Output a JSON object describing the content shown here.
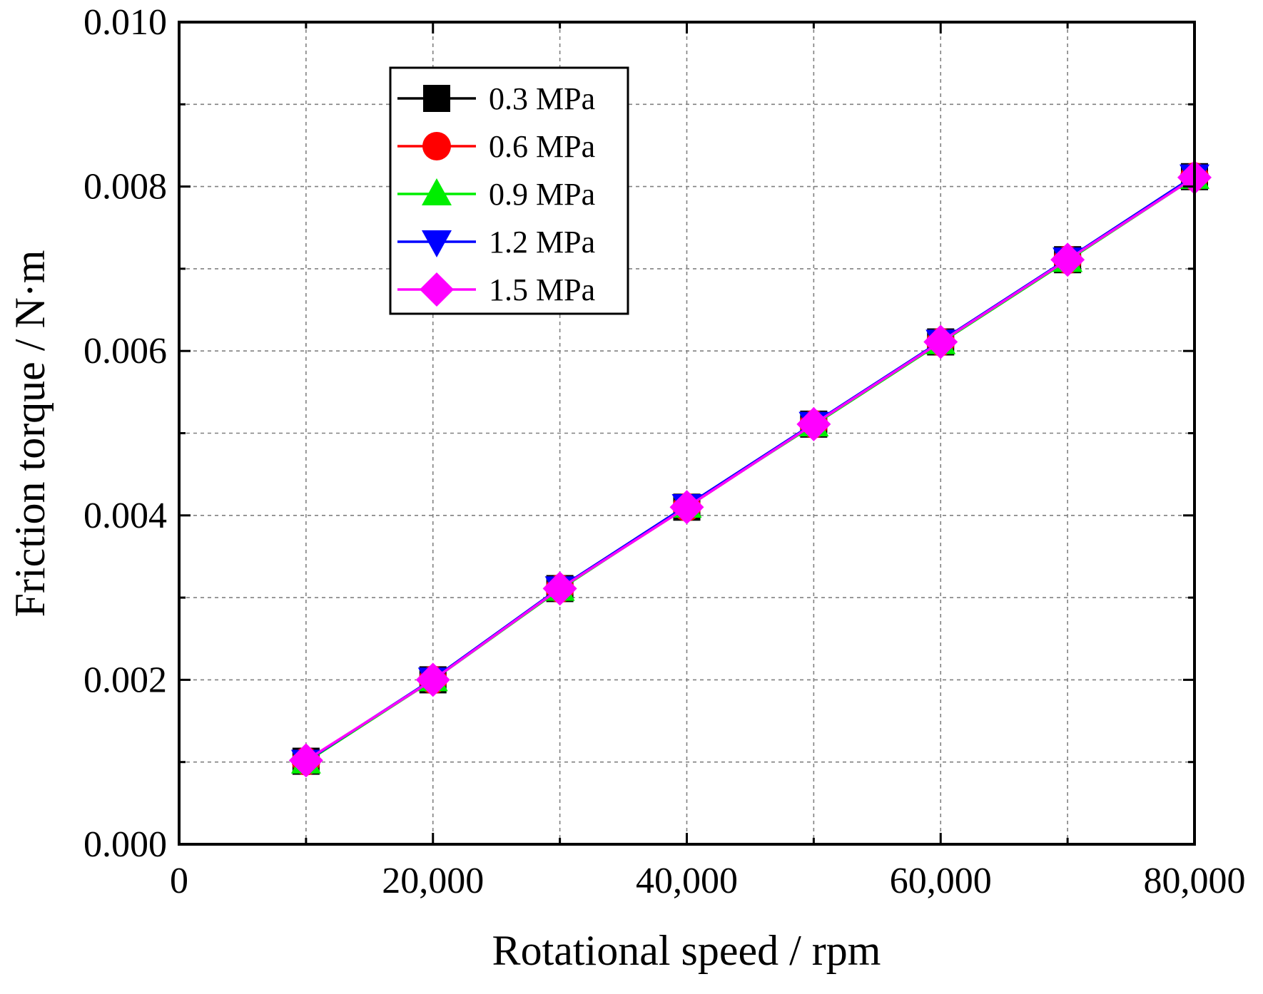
{
  "chart_data": {
    "type": "line",
    "title": "",
    "xlabel": "Rotational speed / rpm",
    "ylabel": "Friction torque / N·m",
    "xlim": [
      0,
      80000
    ],
    "ylim": [
      0,
      0.01
    ],
    "xticks": [
      0,
      20000,
      40000,
      60000,
      80000
    ],
    "xtick_labels": [
      "0",
      "20,000",
      "40,000",
      "60,000",
      "80,000"
    ],
    "xminor": [
      10000,
      30000,
      50000,
      70000
    ],
    "yticks": [
      0,
      0.002,
      0.004,
      0.006,
      0.008,
      0.01
    ],
    "ytick_labels": [
      "0.000",
      "0.002",
      "0.004",
      "0.006",
      "0.008",
      "0.010"
    ],
    "yminor": [
      0.001,
      0.003,
      0.005,
      0.007,
      0.009
    ],
    "grid": true,
    "legend_position": "top-left",
    "x": [
      10000,
      20000,
      30000,
      40000,
      50000,
      60000,
      70000,
      80000
    ],
    "series": [
      {
        "name": "0.3 MPa",
        "marker": "square",
        "color": "#000000",
        "values": [
          0.00101,
          0.002,
          0.00311,
          0.0041,
          0.00511,
          0.00611,
          0.00711,
          0.00812
        ]
      },
      {
        "name": "0.6 MPa",
        "marker": "circle",
        "color": "#ff0000",
        "values": [
          0.00101,
          0.002,
          0.00311,
          0.0041,
          0.00511,
          0.00611,
          0.00711,
          0.00812
        ]
      },
      {
        "name": "0.9 MPa",
        "marker": "triangle-up",
        "color": "#00ee00",
        "values": [
          0.001,
          0.002,
          0.0031,
          0.00411,
          0.0051,
          0.0061,
          0.0071,
          0.00811
        ]
      },
      {
        "name": "1.2 MPa",
        "marker": "triangle-down",
        "color": "#0000ff",
        "values": [
          0.00101,
          0.00201,
          0.00312,
          0.00412,
          0.00512,
          0.00612,
          0.00712,
          0.00813
        ]
      },
      {
        "name": "1.5 MPa",
        "marker": "diamond",
        "color": "#ff00ff",
        "values": [
          0.00102,
          0.002,
          0.00311,
          0.0041,
          0.00511,
          0.00611,
          0.00711,
          0.00811
        ]
      }
    ]
  }
}
